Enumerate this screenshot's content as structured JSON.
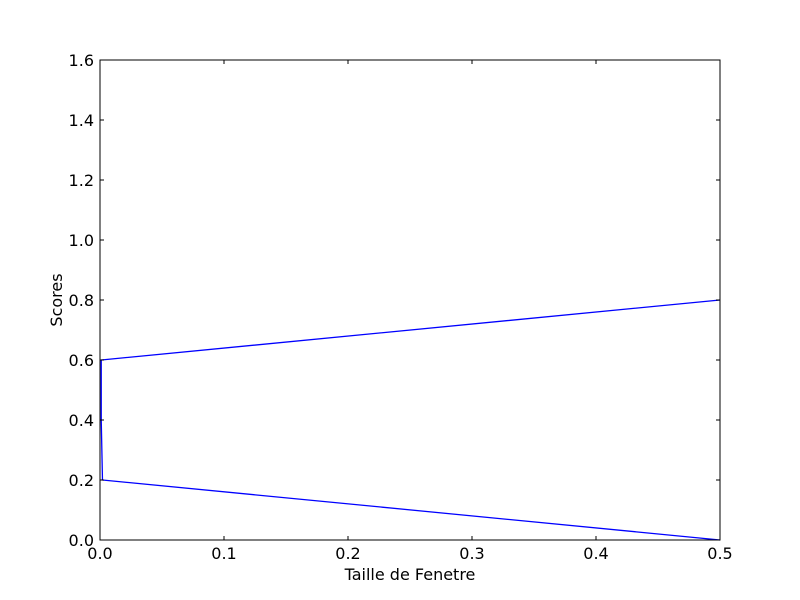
{
  "chart_data": {
    "type": "line",
    "title": "",
    "xlabel": "Taille de Fenetre",
    "ylabel": "Scores",
    "xlim": [
      0.0,
      0.5
    ],
    "ylim": [
      0.0,
      1.6
    ],
    "x_ticks": [
      0.0,
      0.1,
      0.2,
      0.3,
      0.4,
      0.5
    ],
    "x_tick_labels": [
      "0.0",
      "0.1",
      "0.2",
      "0.3",
      "0.4",
      "0.5"
    ],
    "y_ticks": [
      0.0,
      0.2,
      0.4,
      0.6,
      0.8,
      1.0,
      1.2,
      1.4,
      1.6
    ],
    "y_tick_labels": [
      "0.0",
      "0.2",
      "0.4",
      "0.6",
      "0.8",
      "1.0",
      "1.2",
      "1.4",
      "1.6"
    ],
    "grid": false,
    "legend": false,
    "series": [
      {
        "color": "#0000ff",
        "x": [
          0.5,
          0.002,
          0.001,
          0.001,
          0.5
        ],
        "y": [
          0.0,
          0.2,
          0.4,
          0.6,
          0.8
        ]
      }
    ]
  }
}
